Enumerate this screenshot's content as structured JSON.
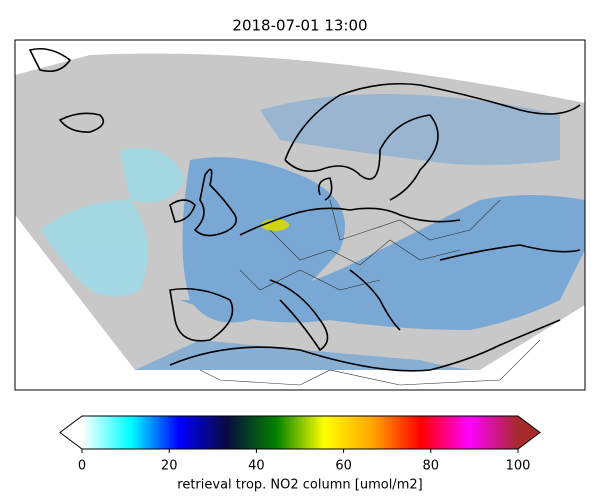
{
  "title": "2018-07-01 13:00",
  "colorbar": {
    "label": "retrieval trop. NO2 column [umol/m2]",
    "lim": [
      0,
      100
    ],
    "ticks": [
      0,
      20,
      40,
      60,
      80,
      100
    ],
    "extend": "both",
    "colors": [
      "#ffffff",
      "#00ffff",
      "#0000ff",
      "#0a0a40",
      "#008000",
      "#ffff00",
      "#ffa500",
      "#ff0000",
      "#ff00ff",
      "#a52a2a"
    ]
  }
}
